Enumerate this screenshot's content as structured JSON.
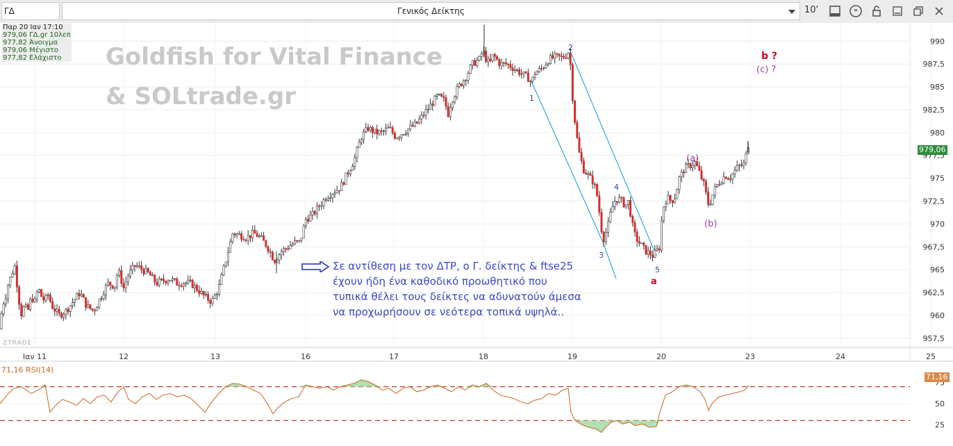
{
  "toolbar": {
    "symbol": "ΓΔ",
    "title": "Γενικός Δείκτης",
    "interval": "10'",
    "icons": [
      "chevron-down-icon",
      "chart-window-icon",
      "quote-icon",
      "lock-icon",
      "minimize-icon",
      "restore-icon",
      "close-icon"
    ]
  },
  "info": {
    "datetime": "Παρ 20 Ιαν 17:10",
    "line1": "979,06 ΓΔ.gr 10λεπ",
    "line2": "977,82 Άνοιγμα",
    "line3": "979,06 Μέγιστο",
    "line4": "977,82 Ελάχιστο"
  },
  "watermark": {
    "line1": "Goldfish for Vital Finance",
    "line2": "& SOLtrade.gr",
    "ztrade": "ZTRADE"
  },
  "comment": "Σε αντίθεση με τον ΔΤΡ, ο Γ. δείκτης & ftse25 έχουν ήδη ένα καθοδικό προωθητικό που τυπικά θέλει τους δείκτες να αδυνατούν άμεσα να προχωρήσουν σε νεότερα τοπικά υψηλά..",
  "wave_labels": {
    "w1": "1",
    "w2": "2",
    "w3": "3",
    "w4": "4",
    "w5": "5",
    "a": "a",
    "b": "b ?",
    "c": "(c) ?",
    "pa": "(a)",
    "pb": "(b)"
  },
  "rsi": {
    "label": "71,16 RSI(14)",
    "value": 71.16,
    "value_label": "71,16",
    "levels": [
      25,
      50,
      75
    ],
    "upper": 70,
    "lower": 30
  },
  "colors": {
    "bull": "#ffffff",
    "bear": "#d0312d",
    "wick": "#333333",
    "channel": "#29a8e0",
    "rsi_line": "#c8641e",
    "rsi_levels": "#c0392b",
    "wave_blue": "#3340b0",
    "wave_red": "#d0021b",
    "wave_purple": "#a040a0",
    "last_price_bg": "#2e8b3a"
  },
  "chart_data": {
    "type": "candlestick",
    "interval": "10 min",
    "x_tick_labels": [
      "Ιαν 11",
      "12",
      "13",
      "16",
      "17",
      "18",
      "19",
      "20",
      "23",
      "24",
      "25"
    ],
    "y_ticks": [
      957.5,
      960,
      962.5,
      965,
      967.5,
      970,
      972.5,
      975,
      977.5,
      980,
      982.5,
      985,
      987.5,
      990
    ],
    "y_tick_labels": [
      "957,5",
      "960",
      "962,5",
      "965",
      "967,5",
      "970",
      "972,5",
      "975",
      "977,5",
      "980",
      "982,5",
      "985",
      "987,5",
      "990"
    ],
    "ylim": [
      956.5,
      992
    ],
    "last_price": 979.06,
    "last_price_label": "979,06",
    "path": [
      [
        0,
        958.5
      ],
      [
        3,
        961
      ],
      [
        8,
        962
      ],
      [
        12,
        963.5
      ],
      [
        17,
        964.5
      ],
      [
        21,
        965.5
      ],
      [
        26,
        962.5
      ],
      [
        30,
        960
      ],
      [
        35,
        961
      ],
      [
        40,
        960.5
      ],
      [
        45,
        962
      ],
      [
        50,
        961.5
      ],
      [
        55,
        963
      ],
      [
        60,
        962
      ],
      [
        65,
        961.5
      ],
      [
        68,
        962.5
      ],
      [
        75,
        961
      ],
      [
        85,
        960
      ],
      [
        95,
        960.5
      ],
      [
        105,
        961.5
      ],
      [
        115,
        962.5
      ],
      [
        125,
        961
      ],
      [
        135,
        960.5
      ],
      [
        145,
        962
      ],
      [
        155,
        963.5
      ],
      [
        165,
        963.2
      ],
      [
        170,
        965
      ],
      [
        178,
        963
      ],
      [
        185,
        964.5
      ],
      [
        195,
        965.5
      ],
      [
        205,
        965
      ],
      [
        215,
        964.5
      ],
      [
        225,
        963.5
      ],
      [
        235,
        963.8
      ],
      [
        245,
        964
      ],
      [
        255,
        963.5
      ],
      [
        265,
        963.6
      ],
      [
        275,
        963.5
      ],
      [
        285,
        962.8
      ],
      [
        295,
        962
      ],
      [
        305,
        961.5
      ],
      [
        315,
        963
      ],
      [
        325,
        966
      ],
      [
        335,
        969
      ],
      [
        345,
        968.8
      ],
      [
        355,
        968.5
      ],
      [
        365,
        969
      ],
      [
        375,
        968.5
      ],
      [
        385,
        967.5
      ],
      [
        395,
        966
      ],
      [
        405,
        967
      ],
      [
        415,
        967.5
      ],
      [
        425,
        968
      ],
      [
        432,
        968
      ],
      [
        440,
        970.5
      ],
      [
        450,
        971
      ],
      [
        460,
        972
      ],
      [
        470,
        973
      ],
      [
        480,
        973.5
      ],
      [
        490,
        974
      ],
      [
        500,
        975.5
      ],
      [
        510,
        977
      ],
      [
        520,
        979.5
      ],
      [
        530,
        980.5
      ],
      [
        540,
        980
      ],
      [
        550,
        980
      ],
      [
        560,
        980.5
      ],
      [
        570,
        979.5
      ],
      [
        580,
        980
      ],
      [
        590,
        980.5
      ],
      [
        600,
        981
      ],
      [
        610,
        982
      ],
      [
        620,
        983
      ],
      [
        630,
        984
      ],
      [
        640,
        983.5
      ],
      [
        645,
        982
      ],
      [
        650,
        983.5
      ],
      [
        660,
        985
      ],
      [
        670,
        986
      ],
      [
        680,
        987.5
      ],
      [
        690,
        988
      ],
      [
        695,
        989
      ],
      [
        700,
        988
      ],
      [
        705,
        987.5
      ],
      [
        710,
        988.5
      ],
      [
        720,
        987.5
      ],
      [
        730,
        987.5
      ],
      [
        740,
        987
      ],
      [
        750,
        986.5
      ],
      [
        760,
        986
      ],
      [
        765,
        985.5
      ],
      [
        770,
        986.5
      ],
      [
        780,
        987
      ],
      [
        790,
        988
      ],
      [
        800,
        988.3
      ],
      [
        810,
        988.2
      ],
      [
        815,
        988.5
      ],
      [
        820,
        989
      ],
      [
        823,
        985
      ],
      [
        828,
        981
      ],
      [
        833,
        978
      ],
      [
        840,
        976
      ],
      [
        845,
        975.5
      ],
      [
        850,
        975
      ],
      [
        855,
        974.5
      ],
      [
        860,
        973
      ],
      [
        865,
        970
      ],
      [
        868,
        968.2
      ],
      [
        872,
        969
      ],
      [
        876,
        970
      ],
      [
        880,
        971.5
      ],
      [
        885,
        972.5
      ],
      [
        890,
        972.8
      ],
      [
        895,
        972.5
      ],
      [
        900,
        972
      ],
      [
        905,
        972.5
      ],
      [
        910,
        970
      ],
      [
        915,
        968.5
      ],
      [
        920,
        968
      ],
      [
        925,
        967.5
      ],
      [
        930,
        967
      ],
      [
        935,
        966.8
      ],
      [
        940,
        966.5
      ],
      [
        945,
        967
      ],
      [
        950,
        967.5
      ],
      [
        953,
        971
      ],
      [
        957,
        972.5
      ],
      [
        962,
        972.8
      ],
      [
        967,
        972.5
      ],
      [
        972,
        973
      ],
      [
        978,
        975
      ],
      [
        985,
        976
      ],
      [
        990,
        976.3
      ],
      [
        996,
        976.5
      ],
      [
        1000,
        976.8
      ],
      [
        1005,
        976
      ],
      [
        1010,
        975
      ],
      [
        1015,
        974
      ],
      [
        1018,
        972.5
      ],
      [
        1021,
        972
      ],
      [
        1025,
        973
      ],
      [
        1030,
        974
      ],
      [
        1035,
        974.5
      ],
      [
        1040,
        975
      ],
      [
        1045,
        975.3
      ],
      [
        1050,
        975
      ],
      [
        1055,
        975.5
      ],
      [
        1060,
        976
      ],
      [
        1066,
        976.5
      ],
      [
        1070,
        976.3
      ],
      [
        1075,
        977.8
      ],
      [
        1078,
        979.06
      ]
    ],
    "rsi_path": [
      [
        0,
        50
      ],
      [
        10,
        60
      ],
      [
        20,
        68
      ],
      [
        30,
        70
      ],
      [
        45,
        62
      ],
      [
        55,
        66
      ],
      [
        65,
        72
      ],
      [
        72,
        40
      ],
      [
        80,
        48
      ],
      [
        90,
        55
      ],
      [
        100,
        52
      ],
      [
        110,
        48
      ],
      [
        120,
        56
      ],
      [
        130,
        50
      ],
      [
        140,
        58
      ],
      [
        150,
        60
      ],
      [
        160,
        52
      ],
      [
        170,
        64
      ],
      [
        178,
        70
      ],
      [
        185,
        55
      ],
      [
        195,
        50
      ],
      [
        205,
        58
      ],
      [
        215,
        62
      ],
      [
        225,
        55
      ],
      [
        235,
        60
      ],
      [
        245,
        62
      ],
      [
        255,
        58
      ],
      [
        265,
        60
      ],
      [
        275,
        56
      ],
      [
        285,
        48
      ],
      [
        295,
        40
      ],
      [
        305,
        52
      ],
      [
        315,
        62
      ],
      [
        325,
        70
      ],
      [
        335,
        74
      ],
      [
        345,
        73
      ],
      [
        355,
        70
      ],
      [
        365,
        66
      ],
      [
        375,
        62
      ],
      [
        385,
        50
      ],
      [
        393,
        38
      ],
      [
        400,
        45
      ],
      [
        410,
        52
      ],
      [
        420,
        56
      ],
      [
        430,
        58
      ],
      [
        440,
        72
      ],
      [
        450,
        70
      ],
      [
        460,
        68
      ],
      [
        470,
        70
      ],
      [
        480,
        66
      ],
      [
        490,
        70
      ],
      [
        500,
        72
      ],
      [
        510,
        74
      ],
      [
        520,
        78
      ],
      [
        530,
        76
      ],
      [
        540,
        72
      ],
      [
        550,
        66
      ],
      [
        560,
        68
      ],
      [
        570,
        62
      ],
      [
        580,
        68
      ],
      [
        590,
        70
      ],
      [
        600,
        64
      ],
      [
        610,
        66
      ],
      [
        620,
        70
      ],
      [
        630,
        72
      ],
      [
        640,
        68
      ],
      [
        650,
        64
      ],
      [
        660,
        70
      ],
      [
        670,
        66
      ],
      [
        680,
        72
      ],
      [
        690,
        70
      ],
      [
        700,
        74
      ],
      [
        710,
        66
      ],
      [
        720,
        60
      ],
      [
        730,
        58
      ],
      [
        740,
        56
      ],
      [
        750,
        52
      ],
      [
        760,
        50
      ],
      [
        770,
        54
      ],
      [
        780,
        56
      ],
      [
        790,
        62
      ],
      [
        800,
        60
      ],
      [
        810,
        66
      ],
      [
        818,
        68
      ],
      [
        822,
        40
      ],
      [
        828,
        30
      ],
      [
        838,
        25
      ],
      [
        848,
        22
      ],
      [
        858,
        20
      ],
      [
        866,
        16
      ],
      [
        872,
        22
      ],
      [
        880,
        28
      ],
      [
        888,
        30
      ],
      [
        896,
        26
      ],
      [
        906,
        28
      ],
      [
        915,
        24
      ],
      [
        925,
        26
      ],
      [
        935,
        22
      ],
      [
        945,
        23
      ],
      [
        950,
        40
      ],
      [
        958,
        60
      ],
      [
        968,
        64
      ],
      [
        978,
        70
      ],
      [
        988,
        72
      ],
      [
        998,
        70
      ],
      [
        1008,
        64
      ],
      [
        1015,
        55
      ],
      [
        1020,
        42
      ],
      [
        1025,
        50
      ],
      [
        1035,
        58
      ],
      [
        1045,
        60
      ],
      [
        1055,
        62
      ],
      [
        1065,
        64
      ],
      [
        1072,
        66
      ],
      [
        1078,
        71.16
      ]
    ]
  }
}
